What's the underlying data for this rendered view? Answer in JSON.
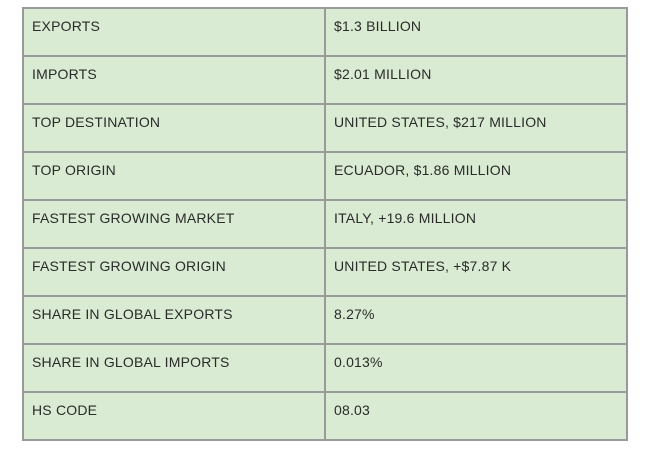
{
  "table": {
    "rows": [
      {
        "label": "EXPORTS",
        "value": "$1.3 BILLION"
      },
      {
        "label": "IMPORTS",
        "value": "$2.01 MILLION"
      },
      {
        "label": "TOP DESTINATION",
        "value": "UNITED STATES, $217 MILLION"
      },
      {
        "label": "TOP ORIGIN",
        "value": "ECUADOR, $1.86 MILLION"
      },
      {
        "label": "FASTEST GROWING MARKET",
        "value": "ITALY, +19.6 MILLION"
      },
      {
        "label": "FASTEST GROWING ORIGIN",
        "value": "UNITED STATES, +$7.87 K"
      },
      {
        "label": "SHARE IN GLOBAL EXPORTS",
        "value": "8.27%"
      },
      {
        "label": "SHARE IN GLOBAL IMPORTS",
        "value": "0.013%"
      },
      {
        "label": "HS CODE",
        "value": "08.03"
      }
    ]
  },
  "colors": {
    "cell_background": "#d9ebd3",
    "border": "#999999",
    "text": "#2a2a2a"
  }
}
